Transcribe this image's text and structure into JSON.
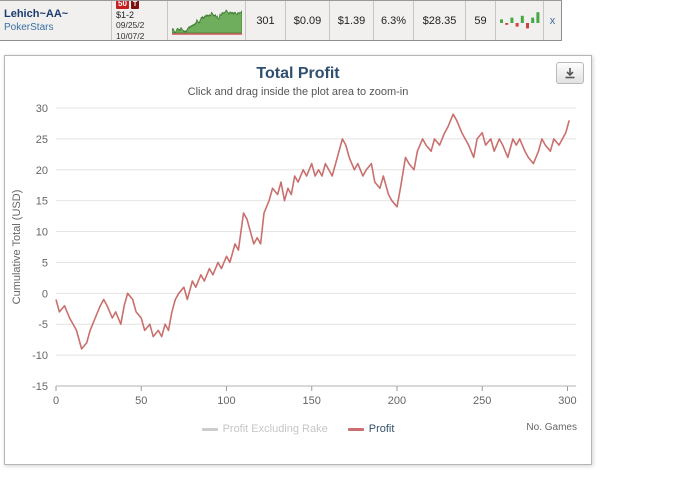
{
  "player_row": {
    "player_name": "Lehich~AA~",
    "site": "PokerStars",
    "limit_badge": "50",
    "badge_extra": "T",
    "stakes": "$1-2",
    "date_from": "09/25/2",
    "date_to": "10/07/2",
    "stats": [
      "301",
      "$0.09",
      "$1.39",
      "6.3%",
      "$28.35",
      "59"
    ],
    "mini_bars": [
      2,
      -1,
      3,
      -2,
      4,
      -3,
      3,
      6
    ],
    "close_label": "x",
    "spark_colors": {
      "fill": "#6fae5c",
      "line": "#3f7a33",
      "baseline": "#cc5555"
    },
    "bar_colors": {
      "positive": "#44a844",
      "negative": "#cc4444"
    }
  },
  "panel": {
    "title": "Total Profit",
    "subtitle": "Click and drag inside the plot area to zoom-in",
    "x_axis_label": "No. Games",
    "legend": [
      {
        "label": "Profit Excluding Rake",
        "color": "#cccccc",
        "text_color": "#c6c6c6"
      },
      {
        "label": "Profit",
        "color": "#c9706e",
        "text_color": "#33506b"
      }
    ]
  },
  "chart_data": {
    "type": "line",
    "title": "Total Profit",
    "subtitle": "Click and drag inside the plot area to zoom-in",
    "xlabel": "No. Games",
    "ylabel": "Cumulative Total (USD)",
    "xlim": [
      0,
      305
    ],
    "ylim": [
      -15,
      30
    ],
    "xticks": [
      0,
      50,
      100,
      150,
      200,
      250,
      300
    ],
    "yticks": [
      -15,
      -10,
      -5,
      0,
      5,
      10,
      15,
      20,
      25,
      30
    ],
    "grid": true,
    "legend_position": "bottom",
    "series": [
      {
        "name": "Profit",
        "color": "#c9706e",
        "x": [
          0,
          2,
          5,
          8,
          12,
          15,
          18,
          20,
          23,
          26,
          28,
          30,
          33,
          35,
          38,
          40,
          42,
          45,
          47,
          50,
          52,
          55,
          57,
          60,
          62,
          64,
          66,
          68,
          70,
          72,
          75,
          77,
          80,
          82,
          85,
          87,
          90,
          92,
          95,
          97,
          100,
          102,
          105,
          107,
          110,
          112,
          114,
          116,
          118,
          120,
          122,
          125,
          127,
          130,
          132,
          134,
          136,
          138,
          140,
          142,
          145,
          147,
          150,
          152,
          154,
          156,
          158,
          160,
          162,
          165,
          168,
          170,
          172,
          175,
          177,
          180,
          182,
          185,
          187,
          190,
          192,
          195,
          197,
          200,
          202,
          205,
          207,
          210,
          212,
          215,
          217,
          220,
          222,
          225,
          228,
          230,
          233,
          235,
          238,
          240,
          242,
          245,
          247,
          250,
          252,
          255,
          257,
          260,
          262,
          265,
          268,
          270,
          272,
          275,
          277,
          280,
          283,
          285,
          287,
          290,
          292,
          295,
          297,
          299,
          301
        ],
        "y": [
          -1,
          -3,
          -2,
          -4,
          -6,
          -9,
          -8,
          -6,
          -4,
          -2,
          -1,
          -2,
          -4,
          -3,
          -5,
          -2,
          0,
          -1,
          -3,
          -4,
          -6,
          -5,
          -7,
          -6,
          -7,
          -5,
          -6,
          -3,
          -1,
          0,
          1,
          -1,
          2,
          1,
          3,
          2,
          4,
          3,
          5,
          4,
          6,
          5,
          8,
          7,
          13,
          12,
          10,
          8,
          9,
          8,
          13,
          15,
          17,
          16,
          18,
          15,
          17,
          16,
          19,
          18,
          20,
          19,
          21,
          19,
          20,
          19,
          21,
          20,
          19,
          22,
          25,
          24,
          22,
          20,
          21,
          19,
          20,
          21,
          18,
          17,
          19,
          16,
          15,
          14,
          17,
          22,
          21,
          20,
          23,
          25,
          24,
          23,
          25,
          24,
          26,
          27,
          29,
          28,
          26,
          25,
          24,
          22,
          25,
          26,
          24,
          25,
          23,
          25,
          24,
          22,
          25,
          24,
          25,
          23,
          22,
          21,
          23,
          25,
          24,
          23,
          25,
          24,
          25,
          26,
          28
        ]
      }
    ]
  }
}
